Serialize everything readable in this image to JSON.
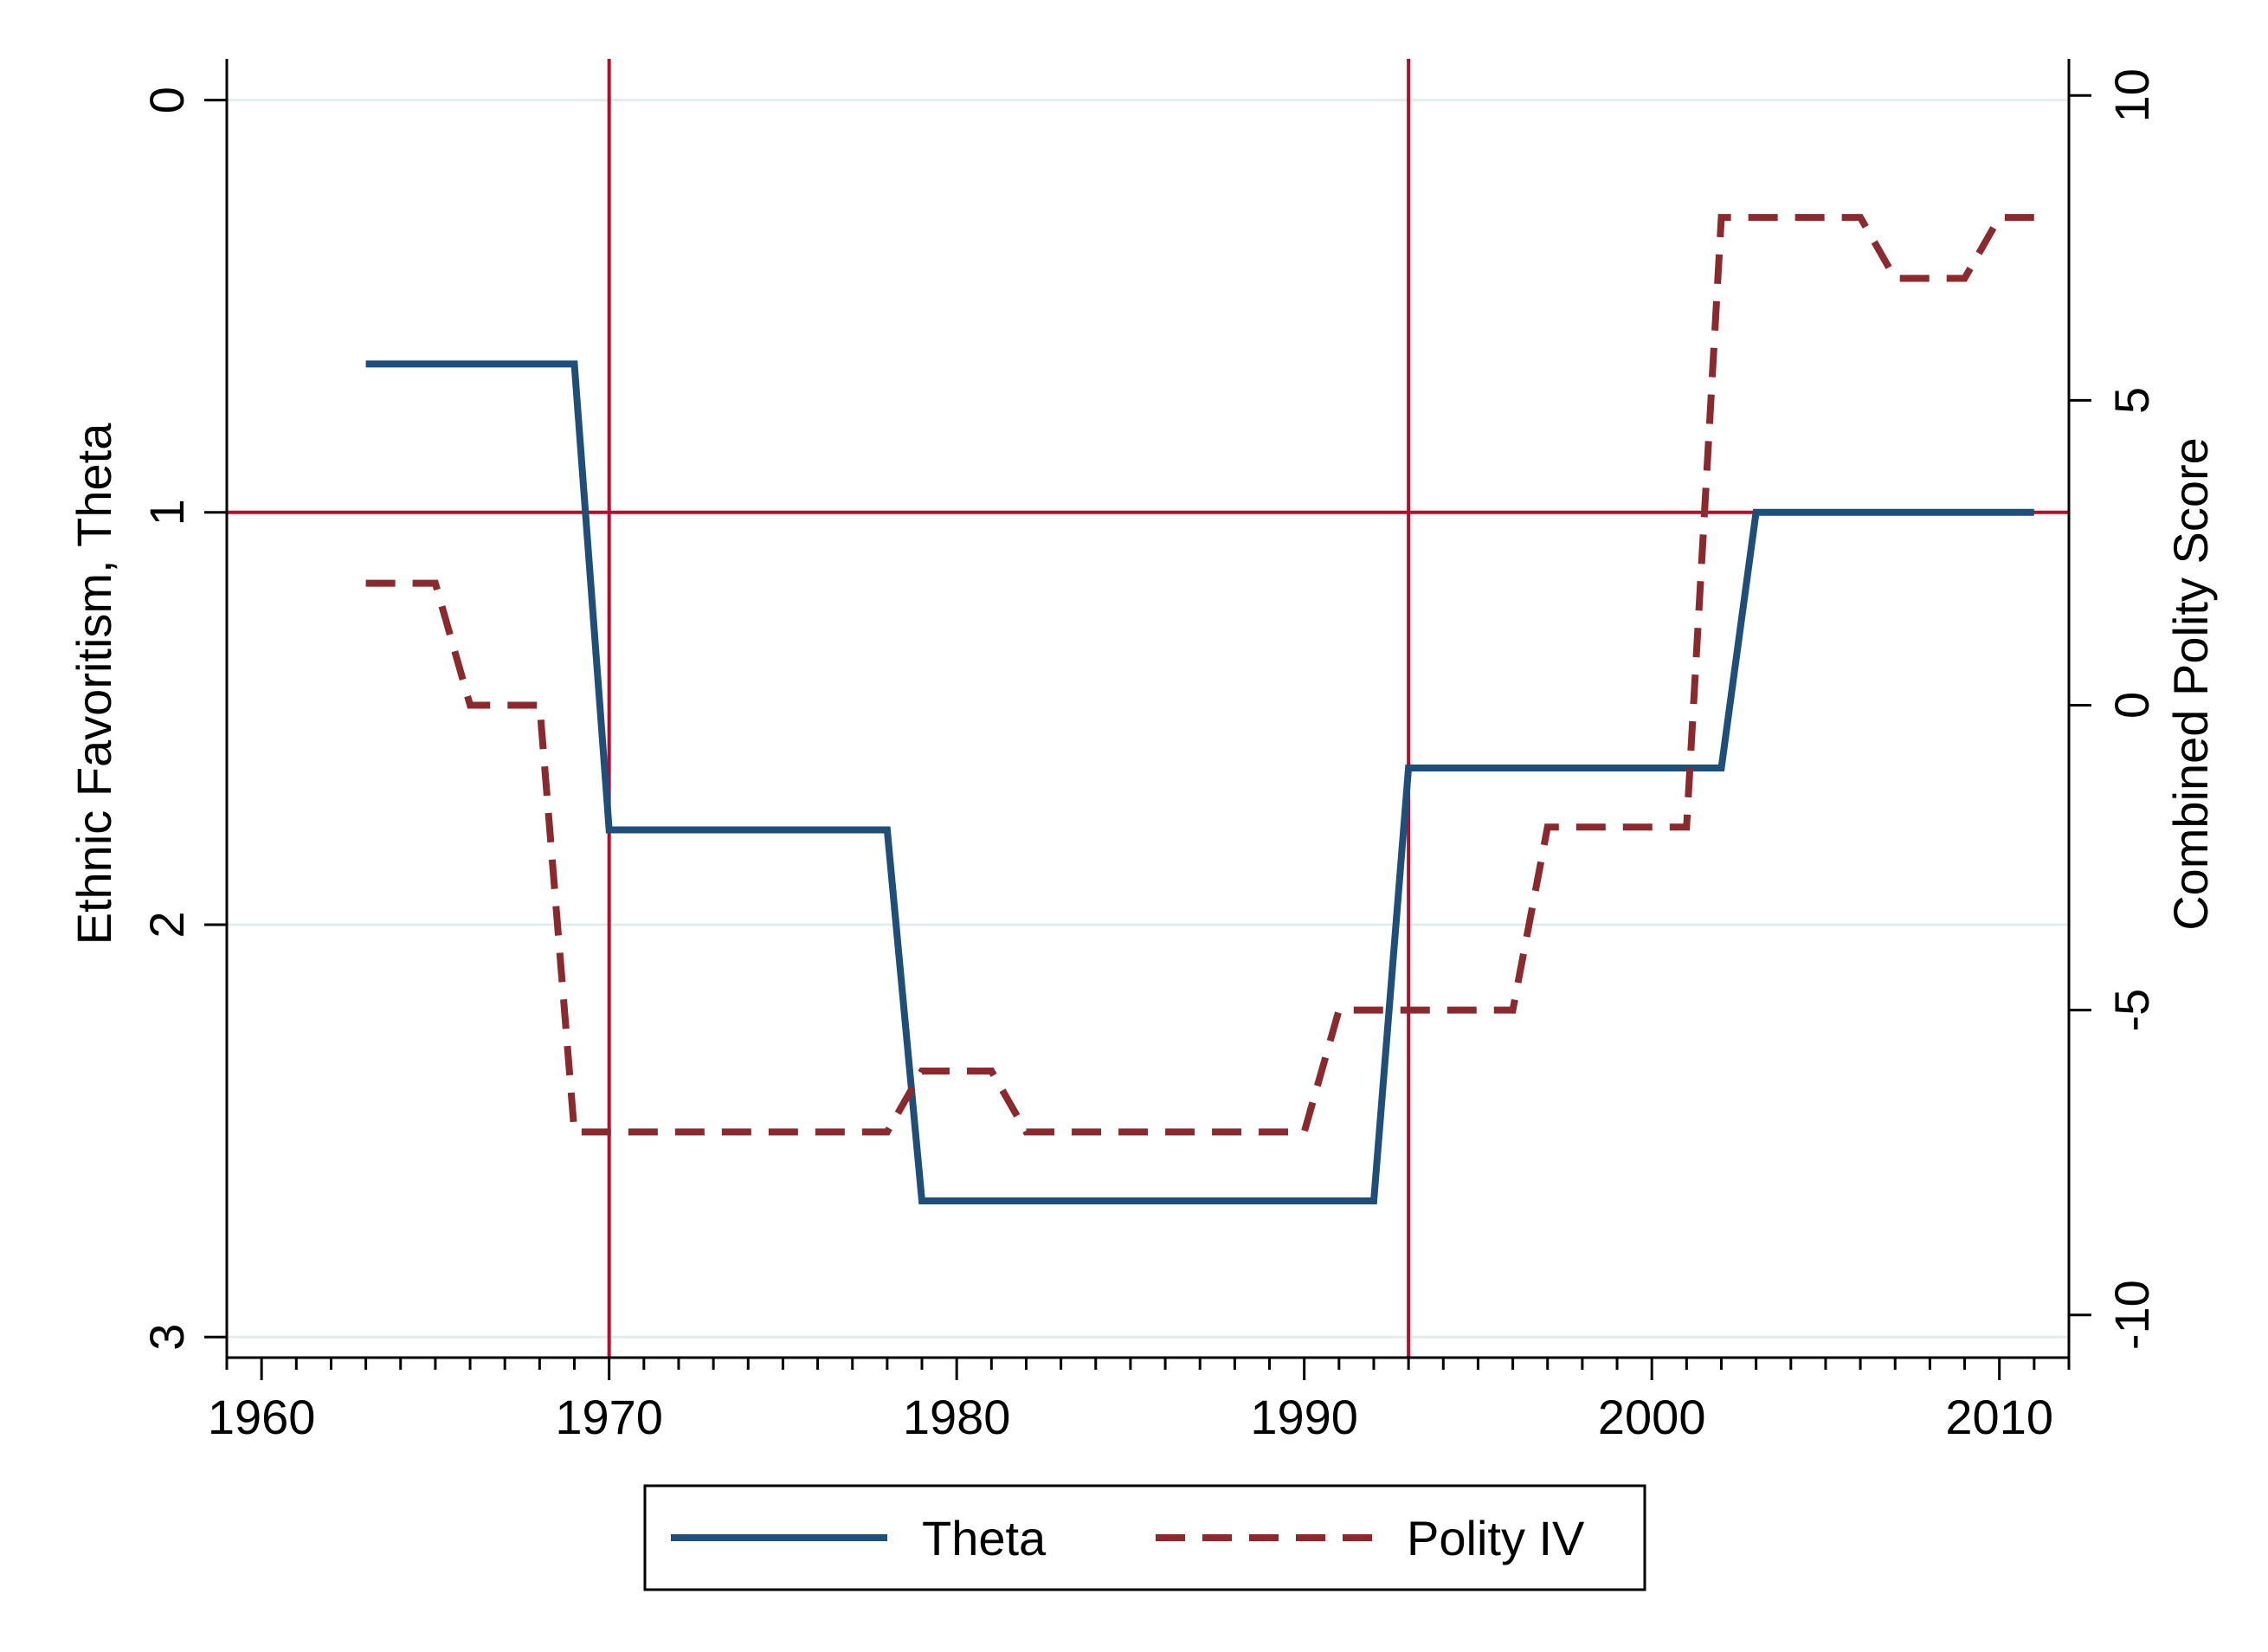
{
  "chart_data": {
    "type": "line",
    "title": "",
    "xlabel": "",
    "ylabel_left": "Ethnic Favoritism, Theta",
    "ylabel_right": "Combined Polity Score",
    "xlim": [
      1959,
      2012
    ],
    "ylim_left": [
      3.05,
      -0.1
    ],
    "ylim_left_reversed": true,
    "ylim_right": [
      -10.7,
      10.6
    ],
    "x_ticks": [
      1960,
      1970,
      1980,
      1990,
      2000,
      2010
    ],
    "x_tick_labels": [
      "1960",
      "1970",
      "1980",
      "1990",
      "2000",
      "2010"
    ],
    "x_minor_step": 1,
    "y_left_ticks": [
      0,
      1,
      2,
      3
    ],
    "y_left_tick_labels": [
      "0",
      "1",
      "2",
      "3"
    ],
    "y_right_ticks": [
      10,
      5,
      0,
      -5,
      -10
    ],
    "y_right_tick_labels": [
      "10",
      "5",
      "0",
      "-5",
      "-10"
    ],
    "grid": "horizontal, left axis",
    "reference_lines": {
      "vertical_x": [
        1970,
        1993
      ],
      "horizontal_theta": 1,
      "color": "#b0102e"
    },
    "legend": {
      "position": "bottom-center",
      "entries": [
        "Theta",
        "Polity IV"
      ]
    },
    "series": [
      {
        "name": "Theta",
        "axis": "left",
        "style": "solid",
        "color": "#1f4e79",
        "x": [
          1963,
          1969,
          1970,
          1978,
          1979,
          1992,
          1993,
          2002,
          2003,
          2011
        ],
        "values": [
          0.64,
          0.64,
          1.77,
          1.77,
          2.67,
          2.67,
          1.62,
          1.62,
          1.0,
          1.0
        ]
      },
      {
        "name": "Polity IV",
        "axis": "right",
        "style": "dashed",
        "color": "#8b2a2e",
        "x": [
          1963,
          1964,
          1965,
          1966,
          1967,
          1968,
          1969,
          1970,
          1971,
          1972,
          1973,
          1974,
          1975,
          1976,
          1977,
          1978,
          1979,
          1980,
          1981,
          1982,
          1983,
          1984,
          1985,
          1986,
          1987,
          1988,
          1989,
          1990,
          1991,
          1992,
          1993,
          1994,
          1995,
          1996,
          1997,
          1998,
          1999,
          2000,
          2001,
          2002,
          2003,
          2004,
          2005,
          2006,
          2007,
          2008,
          2009,
          2010,
          2011
        ],
        "values": [
          2,
          2,
          2,
          0,
          0,
          0,
          -7,
          -7,
          -7,
          -7,
          -7,
          -7,
          -7,
          -7,
          -7,
          -7,
          -6,
          -6,
          -6,
          -7,
          -7,
          -7,
          -7,
          -7,
          -7,
          -7,
          -7,
          -7,
          -5,
          -5,
          -5,
          -5,
          -5,
          -5,
          -2,
          -2,
          -2,
          -2,
          -2,
          8,
          8,
          8,
          8,
          8,
          7,
          7,
          7,
          8,
          8
        ]
      }
    ]
  }
}
